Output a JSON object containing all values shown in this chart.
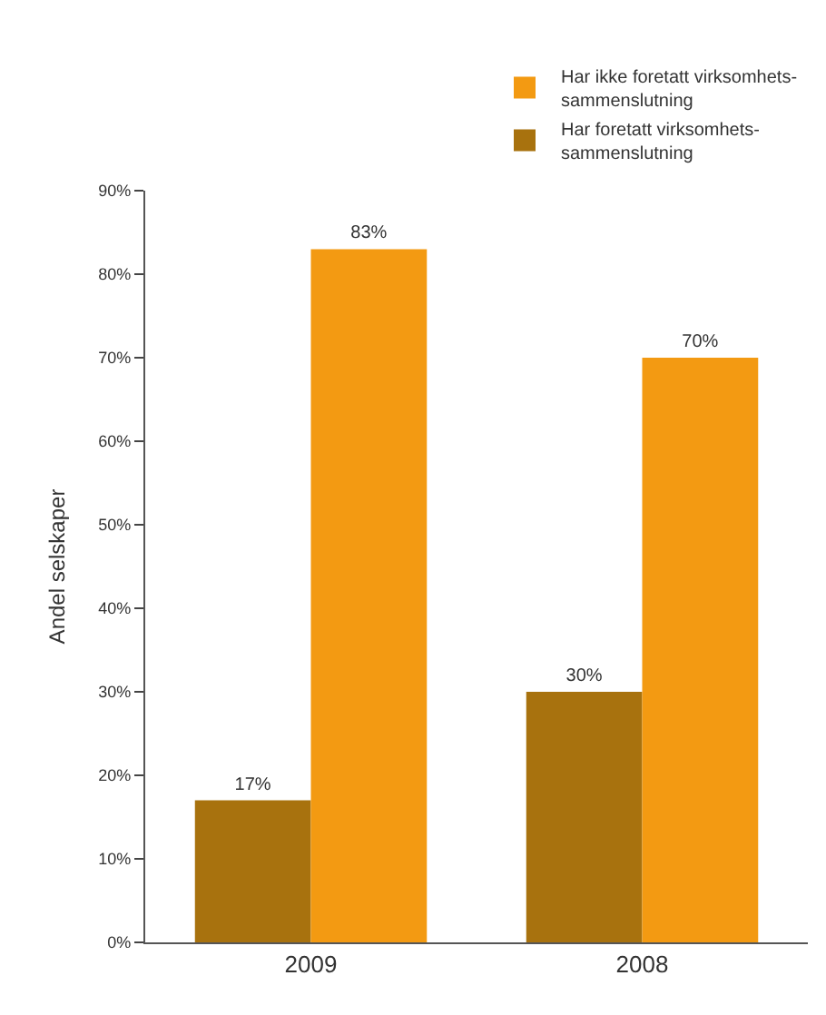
{
  "chart_data": {
    "type": "bar",
    "ylabel": "Andel selskaper",
    "categories": [
      "2009",
      "2008"
    ],
    "series": [
      {
        "name": "Har foretatt virksomhets-sammenslutning",
        "color": "#a8720e",
        "values": [
          17,
          30
        ],
        "value_labels": [
          "17%",
          "30%"
        ]
      },
      {
        "name": "Har ikke foretatt virksomhets-sammenslutning",
        "color": "#f39a12",
        "values": [
          83,
          70
        ],
        "value_labels": [
          "83%",
          "70%"
        ]
      }
    ],
    "ylim": [
      0,
      90
    ],
    "yticks": [
      {
        "value": 0,
        "label": "0%"
      },
      {
        "value": 10,
        "label": "10%"
      },
      {
        "value": 20,
        "label": "20%"
      },
      {
        "value": 30,
        "label": "30%"
      },
      {
        "value": 40,
        "label": "40%"
      },
      {
        "value": 50,
        "label": "50%"
      },
      {
        "value": 60,
        "label": "60%"
      },
      {
        "value": 70,
        "label": "70%"
      },
      {
        "value": 80,
        "label": "80%"
      },
      {
        "value": 90,
        "label": "90%"
      }
    ],
    "legend": "top right"
  }
}
